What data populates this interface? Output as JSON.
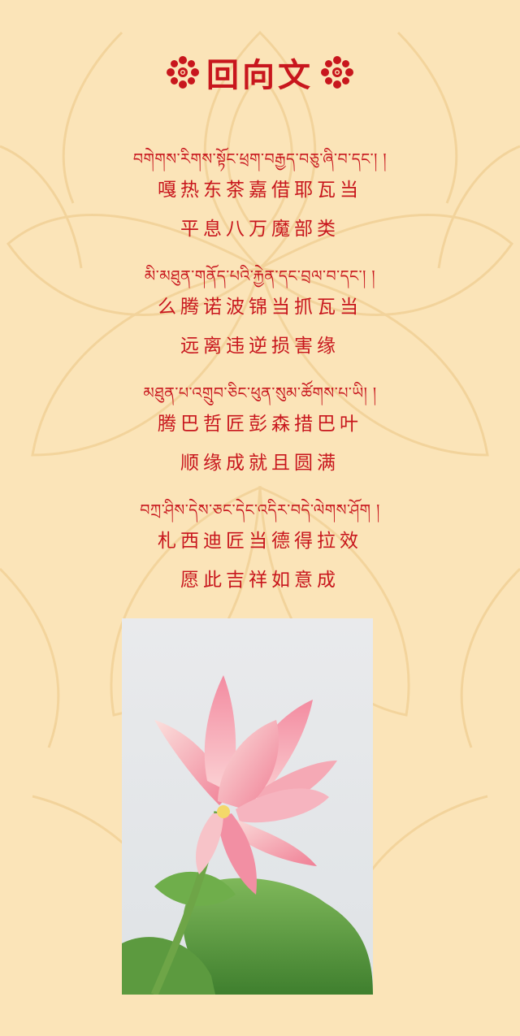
{
  "title": "回向文",
  "verses": [
    {
      "tibetan": "བགེགས་རིགས་སྟོང་ཕྲག་བརྒྱད་བཅུ་ཞི་བ་དང་། །",
      "line1": "嘎热东茶嘉借耶瓦当",
      "line2": "平息八万魔部类"
    },
    {
      "tibetan": "མི་མཐུན་གནོད་པའི་རྐྱེན་དང་བྲལ་བ་དང་། །",
      "line1": "么腾诺波锦当抓瓦当",
      "line2": "远离违逆损害缘"
    },
    {
      "tibetan": "མཐུན་པ་འགྲུབ་ཅིང་ཕུན་སུམ་ཚོགས་པ་ཡི། །",
      "line1": "腾巴哲匠彭森措巴叶",
      "line2": "顺缘成就且圆满"
    },
    {
      "tibetan": "བཀྲ་ཤིས་དེས་ཅང་དེང་འདིར་བདེ་ལེགས་ཤོག །",
      "line1": "札西迪匠当德得拉效",
      "line2": "愿此吉祥如意成"
    }
  ],
  "colors": {
    "background": "#fbe4b8",
    "text": "#c8161d",
    "pattern": "#f3d29a"
  },
  "icons": [
    "flower-ornament-icon",
    "flower-ornament-icon"
  ],
  "photo": "pink-lotus-flower-photo"
}
